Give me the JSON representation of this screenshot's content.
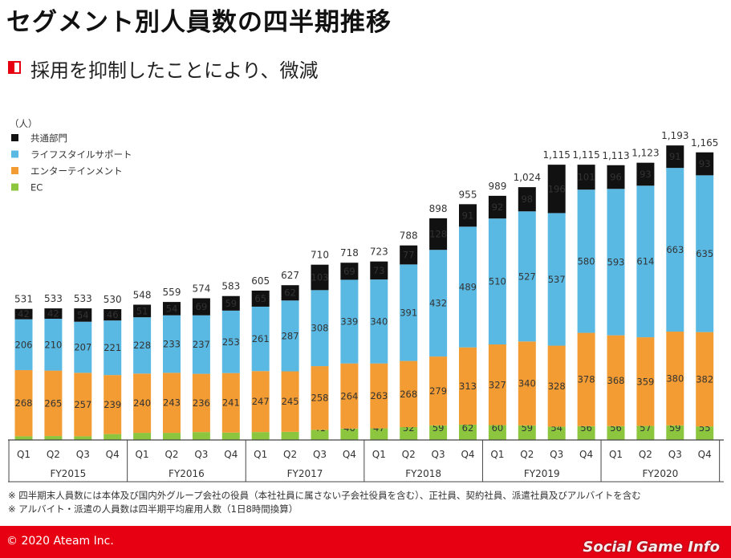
{
  "page": {
    "title": "セグメント別人員数の四半期推移",
    "subtitle": "採用を抑制したことにより、微減",
    "notes": [
      "※ 四半期末人員数には本体及び国内外グループ会社の役員（本社社員に属さない子会社役員を含む）、正社員、契約社員、派遣社員及びアルバイトを含む",
      "※ アルバイト・派遣の人員数は四半期平均雇用人数（1日8時間換算）"
    ],
    "copyright": "© 2020 Ateam Inc.",
    "watermark": "Social Game Info"
  },
  "colors": {
    "accent": "#e60012",
    "common": "#111111",
    "lifestyle": "#5ab9e3",
    "entertainment": "#f39c33",
    "ec": "#8cc63f"
  },
  "chart_data": {
    "type": "bar",
    "stacked": true,
    "unit_label": "（人）",
    "categories": [
      "Q1",
      "Q2",
      "Q3",
      "Q4",
      "Q1",
      "Q2",
      "Q3",
      "Q4",
      "Q1",
      "Q2",
      "Q3",
      "Q4",
      "Q1",
      "Q2",
      "Q3",
      "Q4",
      "Q1",
      "Q2",
      "Q3",
      "Q4",
      "Q1",
      "Q2",
      "Q3",
      "Q4"
    ],
    "groups": [
      "FY2015",
      "FY2016",
      "FY2017",
      "FY2018",
      "FY2019",
      "FY2020"
    ],
    "group_size": 4,
    "series": [
      {
        "name": "EC",
        "color": "#8cc63f",
        "values": [
          15,
          16,
          15,
          24,
          29,
          29,
          32,
          30,
          32,
          33,
          41,
          46,
          47,
          52,
          59,
          62,
          60,
          59,
          54,
          56,
          56,
          57,
          59,
          55
        ]
      },
      {
        "name": "エンターテインメント",
        "color": "#f39c33",
        "values": [
          268,
          265,
          257,
          239,
          240,
          243,
          236,
          241,
          247,
          245,
          258,
          264,
          263,
          268,
          279,
          313,
          327,
          340,
          328,
          378,
          368,
          359,
          380,
          382
        ]
      },
      {
        "name": "ライフスタイルサポート",
        "color": "#5ab9e3",
        "values": [
          206,
          210,
          207,
          221,
          228,
          233,
          237,
          253,
          261,
          287,
          308,
          339,
          340,
          391,
          432,
          489,
          510,
          527,
          537,
          580,
          593,
          614,
          663,
          635
        ]
      },
      {
        "name": "共通部門",
        "color": "#111111",
        "values": [
          42,
          42,
          54,
          46,
          51,
          54,
          69,
          59,
          65,
          62,
          103,
          69,
          73,
          77,
          128,
          91,
          92,
          98,
          196,
          101,
          96,
          93,
          91,
          93
        ]
      }
    ],
    "totals": [
      "531",
      "533",
      "533",
      "530",
      "548",
      "559",
      "574",
      "583",
      "605",
      "627",
      "710",
      "718",
      "723",
      "788",
      "898",
      "955",
      "989",
      "1,024",
      "1,115",
      "1,115",
      "1,113",
      "1,123",
      "1,193",
      "1,165"
    ],
    "legend_order": [
      "共通部門",
      "ライフスタイルサポート",
      "エンターテインメント",
      "EC"
    ],
    "legend_position": "top-left",
    "ylim": [
      0,
      1250
    ],
    "grid": false
  }
}
